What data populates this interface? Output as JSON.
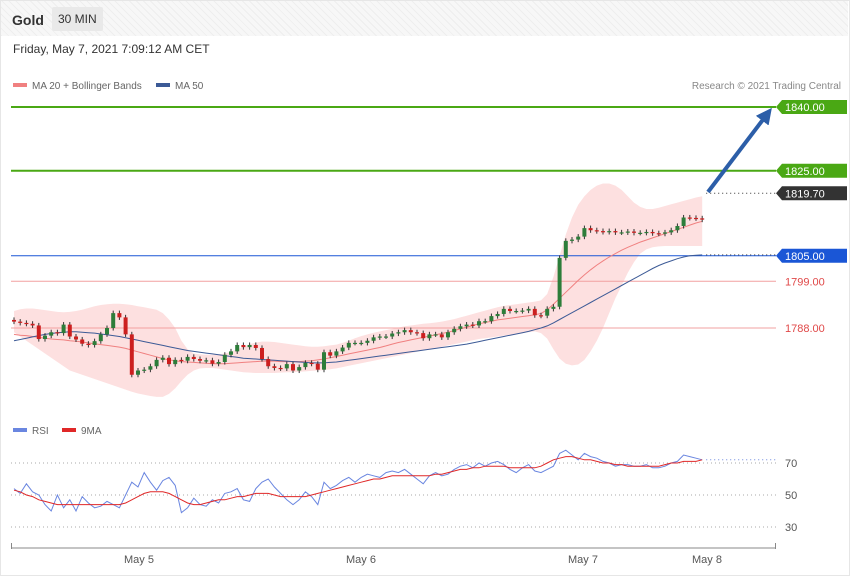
{
  "header": {
    "symbol": "Gold",
    "interval": "30 MIN",
    "datetime": "Friday, May 7, 2021 7:09:12 AM CET",
    "credit": "Research © 2021 Trading Central"
  },
  "colors": {
    "ma20": "#f08080",
    "ma50": "#3c5a96",
    "bands": "#fde0e0",
    "resistance": "#4aa814",
    "pivot": "#1a56d6",
    "support": "#e04848",
    "arrow": "#2c5ea8",
    "up": "#2d7d3a",
    "down": "#cc1f1f",
    "rsi": "#6a86e0",
    "rsi_ma": "#e02828"
  },
  "chart_data": [
    {
      "type": "candlestick",
      "legend": [
        {
          "name": "MA 20 + Bollinger Bands",
          "color": "#f08080"
        },
        {
          "name": "MA 50",
          "color": "#3c5a96"
        }
      ],
      "x_ticks": [
        "May 5",
        "May 6",
        "May 7",
        "May 8"
      ],
      "price_levels": [
        {
          "value": 1840.0,
          "label": "1840.00",
          "kind": "resistance"
        },
        {
          "value": 1825.0,
          "label": "1825.00",
          "kind": "resistance"
        },
        {
          "value": 1819.7,
          "label": "1819.70",
          "kind": "last"
        },
        {
          "value": 1805.0,
          "label": "1805.00",
          "kind": "pivot"
        },
        {
          "value": 1799.0,
          "label": "1799.00",
          "kind": "support"
        },
        {
          "value": 1788.0,
          "label": "1788.00",
          "kind": "support"
        }
      ],
      "last_price": 1819.7,
      "target_price": 1840.0,
      "candles_close": [
        1789.5,
        1789.2,
        1789.0,
        1788.6,
        1785.4,
        1786.2,
        1787.0,
        1786.8,
        1788.8,
        1786.0,
        1785.3,
        1784.3,
        1784.0,
        1784.9,
        1786.5,
        1788.0,
        1791.5,
        1790.5,
        1786.5,
        1777.0,
        1778.0,
        1778.2,
        1779.0,
        1780.5,
        1781.0,
        1779.5,
        1780.5,
        1780.3,
        1781.2,
        1780.7,
        1780.3,
        1780.4,
        1779.6,
        1780.0,
        1781.7,
        1782.5,
        1784.0,
        1783.5,
        1784.0,
        1783.3,
        1780.7,
        1779.0,
        1778.6,
        1778.5,
        1779.5,
        1778.0,
        1778.8,
        1779.8,
        1779.6,
        1778.2,
        1782.3,
        1781.5,
        1782.5,
        1783.4,
        1784.5,
        1784.5,
        1784.5,
        1785.0,
        1785.8,
        1786.0,
        1786.0,
        1786.7,
        1787.0,
        1787.5,
        1787.0,
        1786.8,
        1785.6,
        1786.5,
        1786.5,
        1785.8,
        1787.0,
        1787.8,
        1788.4,
        1788.8,
        1788.6,
        1789.6,
        1789.6,
        1790.8,
        1791.3,
        1792.5,
        1792.0,
        1792.0,
        1792.1,
        1792.5,
        1791.0,
        1790.9,
        1792.5,
        1793.0,
        1804.5,
        1808.5,
        1808.8,
        1809.5,
        1811.5,
        1811.0,
        1810.8,
        1810.6,
        1810.8,
        1810.5,
        1810.5,
        1810.7,
        1810.4,
        1810.4,
        1810.6,
        1810.3,
        1810.2,
        1810.5,
        1811.0,
        1812.0,
        1814.0,
        1813.9,
        1813.8,
        1813.5
      ],
      "ma20": [
        1786.5,
        1786.3,
        1786.2,
        1786.0,
        1785.8,
        1785.6,
        1785.4,
        1785.3,
        1785.2,
        1785.0,
        1784.9,
        1784.7,
        1784.5,
        1784.3,
        1784.1,
        1783.9,
        1783.7,
        1783.5,
        1783.2,
        1782.8,
        1782.4,
        1782.0,
        1781.6,
        1781.2,
        1780.8,
        1780.5,
        1780.3,
        1780.1,
        1780.0,
        1779.9,
        1779.8,
        1779.7,
        1779.6,
        1779.6,
        1779.6,
        1779.7,
        1779.8,
        1779.9,
        1780.0,
        1780.1,
        1780.2,
        1780.2,
        1780.2,
        1780.1,
        1780.1,
        1780.1,
        1780.1,
        1780.2,
        1780.3,
        1780.5,
        1780.7,
        1781.0,
        1781.3,
        1781.6,
        1781.9,
        1782.2,
        1782.5,
        1782.8,
        1783.1,
        1783.4,
        1783.8,
        1784.2,
        1784.6,
        1784.9,
        1785.2,
        1785.5,
        1785.8,
        1786.1,
        1786.4,
        1786.7,
        1787.0,
        1787.4,
        1787.8,
        1788.2,
        1788.6,
        1789.0,
        1789.3,
        1789.6,
        1789.9,
        1790.1,
        1790.3,
        1790.5,
        1790.7,
        1790.9,
        1791.1,
        1791.4,
        1792.3,
        1793.6,
        1795.0,
        1796.4,
        1797.8,
        1799.2,
        1800.5,
        1801.7,
        1802.8,
        1803.8,
        1804.7,
        1805.5,
        1806.3,
        1807.0,
        1807.6,
        1808.2,
        1808.7,
        1809.2,
        1809.7,
        1810.2,
        1810.7,
        1811.2,
        1811.7,
        1812.2,
        1812.7,
        1813.1
      ],
      "ma50": [
        1785.0,
        1785.3,
        1785.6,
        1785.9,
        1786.2,
        1786.5,
        1786.7,
        1786.9,
        1787.0,
        1787.1,
        1787.1,
        1787.0,
        1786.9,
        1786.8,
        1786.6,
        1786.4,
        1786.2,
        1786.0,
        1785.7,
        1785.4,
        1785.1,
        1784.8,
        1784.5,
        1784.2,
        1783.9,
        1783.6,
        1783.3,
        1783.0,
        1782.7,
        1782.5,
        1782.3,
        1782.1,
        1781.9,
        1781.7,
        1781.5,
        1781.3,
        1781.1,
        1780.9,
        1780.8,
        1780.7,
        1780.6,
        1780.5,
        1780.4,
        1780.3,
        1780.2,
        1780.1,
        1780.0,
        1779.9,
        1779.8,
        1779.8,
        1779.8,
        1779.9,
        1780.0,
        1780.2,
        1780.4,
        1780.6,
        1780.8,
        1781.0,
        1781.2,
        1781.4,
        1781.6,
        1781.8,
        1782.0,
        1782.2,
        1782.4,
        1782.6,
        1782.8,
        1783.0,
        1783.2,
        1783.4,
        1783.6,
        1783.8,
        1784.0,
        1784.2,
        1784.5,
        1784.8,
        1785.1,
        1785.4,
        1785.7,
        1786.0,
        1786.3,
        1786.6,
        1786.9,
        1787.2,
        1787.6,
        1788.0,
        1788.5,
        1789.2,
        1790.0,
        1790.8,
        1791.6,
        1792.4,
        1793.2,
        1794.0,
        1794.8,
        1795.6,
        1796.4,
        1797.2,
        1798.0,
        1798.8,
        1799.6,
        1800.4,
        1801.2,
        1802.0,
        1802.7,
        1803.3,
        1803.8,
        1804.3,
        1804.7,
        1805.0,
        1805.1,
        1805.2
      ],
      "bollinger_upper": [
        1792.0,
        1792.4,
        1792.6,
        1792.6,
        1792.4,
        1792.2,
        1792.0,
        1791.8,
        1791.7,
        1791.8,
        1792.0,
        1792.3,
        1792.7,
        1793.1,
        1793.4,
        1793.6,
        1793.7,
        1793.7,
        1793.6,
        1793.4,
        1793.1,
        1792.9,
        1792.6,
        1792.3,
        1791.5,
        1790.0,
        1788.0,
        1785.0,
        1783.0,
        1782.0,
        1781.8,
        1781.7,
        1781.7,
        1781.8,
        1782.0,
        1782.4,
        1783.0,
        1783.6,
        1784.2,
        1784.6,
        1784.8,
        1784.8,
        1784.7,
        1784.5,
        1784.3,
        1784.1,
        1783.9,
        1783.7,
        1783.6,
        1783.6,
        1783.7,
        1783.9,
        1784.1,
        1784.5,
        1785.0,
        1785.6,
        1786.1,
        1786.5,
        1786.9,
        1787.2,
        1787.5,
        1787.8,
        1788.1,
        1788.4,
        1788.6,
        1788.8,
        1789.0,
        1789.1,
        1789.3,
        1789.5,
        1789.8,
        1790.1,
        1790.5,
        1790.9,
        1791.3,
        1791.7,
        1792.1,
        1792.5,
        1792.9,
        1793.2,
        1793.4,
        1793.6,
        1793.8,
        1794.0,
        1794.2,
        1794.5,
        1796.0,
        1800.0,
        1805.0,
        1810.0,
        1814.0,
        1817.0,
        1819.0,
        1820.5,
        1821.5,
        1822.0,
        1822.0,
        1821.5,
        1820.5,
        1819.0,
        1817.5,
        1816.5,
        1816.0,
        1816.0,
        1816.3,
        1816.7,
        1817.1,
        1817.5,
        1817.9,
        1818.3,
        1818.7,
        1819.0
      ],
      "bollinger_lower": [
        1787.0,
        1786.0,
        1785.0,
        1784.0,
        1783.0,
        1782.0,
        1781.0,
        1780.0,
        1779.0,
        1778.0,
        1777.5,
        1777.0,
        1776.5,
        1776.0,
        1775.5,
        1775.0,
        1774.5,
        1774.0,
        1773.5,
        1773.0,
        1772.6,
        1772.3,
        1772.0,
        1771.8,
        1771.8,
        1772.5,
        1773.8,
        1775.5,
        1777.0,
        1778.0,
        1778.5,
        1778.6,
        1778.6,
        1778.4,
        1778.2,
        1778.0,
        1777.8,
        1777.6,
        1777.5,
        1777.4,
        1777.4,
        1777.4,
        1777.4,
        1777.5,
        1777.6,
        1777.6,
        1777.7,
        1777.8,
        1777.9,
        1778.0,
        1778.1,
        1778.3,
        1778.5,
        1778.8,
        1779.1,
        1779.4,
        1779.7,
        1780.0,
        1780.3,
        1780.6,
        1780.9,
        1781.2,
        1781.5,
        1781.8,
        1782.1,
        1782.4,
        1782.7,
        1783.0,
        1783.3,
        1783.6,
        1783.9,
        1784.2,
        1784.5,
        1784.8,
        1785.1,
        1785.4,
        1785.6,
        1785.8,
        1786.0,
        1786.2,
        1786.4,
        1786.6,
        1786.8,
        1787.0,
        1787.2,
        1786.8,
        1785.5,
        1783.0,
        1780.8,
        1779.6,
        1779.2,
        1779.4,
        1780.5,
        1782.5,
        1785.0,
        1788.0,
        1791.5,
        1795.0,
        1798.0,
        1801.0,
        1803.5,
        1805.5,
        1806.5,
        1807.0,
        1807.2,
        1807.3,
        1807.3,
        1807.3,
        1807.3,
        1807.3,
        1807.3,
        1807.3
      ]
    },
    {
      "type": "line",
      "legend": [
        {
          "name": "RSI",
          "color": "#6a86e0"
        },
        {
          "name": "9MA",
          "color": "#e02828"
        }
      ],
      "y_ticks": [
        70,
        50,
        30
      ],
      "rsi": [
        54,
        51,
        57,
        52,
        50,
        44,
        40,
        50,
        42,
        47,
        40,
        49,
        45,
        42,
        43,
        46,
        44,
        42,
        50,
        58,
        55,
        64,
        58,
        53,
        59,
        61,
        56,
        39,
        42,
        48,
        44,
        43,
        47,
        45,
        51,
        52,
        54,
        47,
        46,
        54,
        58,
        60,
        55,
        51,
        47,
        44,
        47,
        52,
        49,
        44,
        58,
        54,
        56,
        59,
        61,
        58,
        61,
        63,
        62,
        61,
        64,
        65,
        64,
        66,
        63,
        60,
        57,
        62,
        64,
        62,
        63,
        66,
        68,
        69,
        67,
        70,
        68,
        70,
        71,
        69,
        66,
        64,
        67,
        69,
        65,
        64,
        66,
        68,
        76,
        78,
        75,
        72,
        76,
        74,
        73,
        71,
        70,
        68,
        69,
        69,
        68,
        68,
        69,
        67,
        67,
        68,
        70,
        71,
        75,
        74,
        73,
        72
      ],
      "rsi_ma": [
        53,
        52,
        50,
        49,
        47,
        46,
        45,
        44,
        44,
        44,
        44,
        44,
        44,
        44,
        44,
        44,
        44,
        44,
        45,
        47,
        49,
        51,
        52,
        52,
        52,
        51,
        49,
        47,
        45,
        44,
        44,
        45,
        46,
        47,
        47,
        48,
        49,
        49,
        50,
        51,
        51,
        51,
        50,
        49,
        49,
        49,
        49,
        49,
        50,
        51,
        52,
        53,
        54,
        55,
        56,
        57,
        58,
        59,
        60,
        60,
        61,
        62,
        62,
        62,
        62,
        62,
        62,
        62,
        63,
        63,
        64,
        65,
        66,
        66,
        67,
        67,
        68,
        68,
        68,
        68,
        67,
        67,
        67,
        67,
        67,
        68,
        70,
        72,
        73,
        74,
        74,
        73,
        72,
        72,
        71,
        70,
        70,
        69,
        69,
        68,
        68,
        68,
        68,
        68,
        68,
        69,
        70,
        70,
        71,
        71,
        71,
        72
      ]
    }
  ]
}
